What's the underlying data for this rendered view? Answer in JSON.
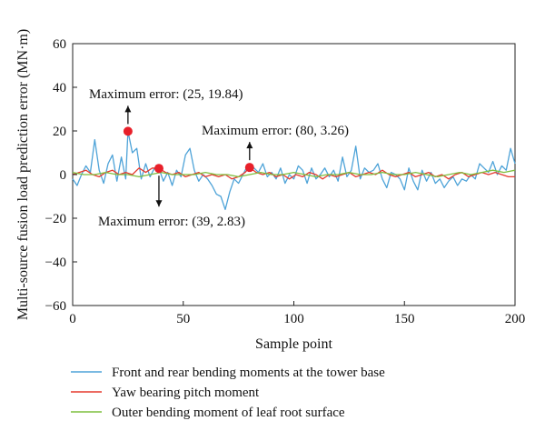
{
  "chart_data": {
    "type": "line",
    "title": "",
    "xlabel": "Sample point",
    "ylabel": "Multi-source fusion load prediction error (MN·m)",
    "xlim": [
      0,
      200
    ],
    "ylim": [
      -60,
      60
    ],
    "xticks": [
      0,
      50,
      100,
      150,
      200
    ],
    "yticks": [
      -60,
      -40,
      -20,
      0,
      20,
      40,
      60
    ],
    "grid": false,
    "legend": "bottom",
    "series": [
      {
        "name": "Front and rear bending moments at the tower base",
        "color": "#4ea3d8",
        "points": [
          [
            0,
            -2
          ],
          [
            2,
            -5
          ],
          [
            4,
            0
          ],
          [
            6,
            4
          ],
          [
            8,
            1
          ],
          [
            10,
            16
          ],
          [
            12,
            2
          ],
          [
            14,
            -4
          ],
          [
            16,
            5
          ],
          [
            18,
            9
          ],
          [
            20,
            -3
          ],
          [
            22,
            8
          ],
          [
            24,
            -2
          ],
          [
            25,
            19.84
          ],
          [
            27,
            10
          ],
          [
            29,
            12
          ],
          [
            31,
            -2
          ],
          [
            33,
            5
          ],
          [
            35,
            -1
          ],
          [
            37,
            3
          ],
          [
            39,
            2.83
          ],
          [
            41,
            -3
          ],
          [
            43,
            1
          ],
          [
            45,
            -5
          ],
          [
            47,
            2
          ],
          [
            49,
            -1
          ],
          [
            51,
            9
          ],
          [
            53,
            12
          ],
          [
            55,
            2
          ],
          [
            57,
            -3
          ],
          [
            59,
            0
          ],
          [
            61,
            -2
          ],
          [
            63,
            -5
          ],
          [
            65,
            -9
          ],
          [
            67,
            -10
          ],
          [
            69,
            -16
          ],
          [
            71,
            -8
          ],
          [
            73,
            -2
          ],
          [
            75,
            -4
          ],
          [
            77,
            0
          ],
          [
            79,
            4
          ],
          [
            80,
            3.26
          ],
          [
            82,
            3
          ],
          [
            84,
            1
          ],
          [
            86,
            5
          ],
          [
            88,
            -1
          ],
          [
            90,
            1
          ],
          [
            92,
            -2
          ],
          [
            94,
            3
          ],
          [
            96,
            -4
          ],
          [
            98,
            0
          ],
          [
            100,
            -2
          ],
          [
            102,
            4
          ],
          [
            104,
            2
          ],
          [
            106,
            -4
          ],
          [
            108,
            3
          ],
          [
            110,
            -2
          ],
          [
            112,
            0
          ],
          [
            114,
            3
          ],
          [
            116,
            -1
          ],
          [
            118,
            2
          ],
          [
            120,
            -3
          ],
          [
            122,
            8
          ],
          [
            124,
            -1
          ],
          [
            126,
            2
          ],
          [
            128,
            13
          ],
          [
            130,
            -2
          ],
          [
            132,
            3
          ],
          [
            134,
            1
          ],
          [
            136,
            2
          ],
          [
            138,
            5
          ],
          [
            140,
            -2
          ],
          [
            142,
            -6
          ],
          [
            144,
            1
          ],
          [
            146,
            0
          ],
          [
            148,
            -2
          ],
          [
            150,
            -7
          ],
          [
            152,
            3
          ],
          [
            154,
            -3
          ],
          [
            156,
            -7
          ],
          [
            158,
            2
          ],
          [
            160,
            -3
          ],
          [
            162,
            1
          ],
          [
            164,
            -4
          ],
          [
            166,
            -2
          ],
          [
            168,
            -6
          ],
          [
            170,
            -3
          ],
          [
            172,
            -1
          ],
          [
            174,
            -5
          ],
          [
            176,
            -2
          ],
          [
            178,
            -3
          ],
          [
            180,
            0
          ],
          [
            182,
            -2
          ],
          [
            184,
            5
          ],
          [
            186,
            3
          ],
          [
            188,
            1
          ],
          [
            190,
            6
          ],
          [
            192,
            0
          ],
          [
            194,
            4
          ],
          [
            196,
            2
          ],
          [
            198,
            12
          ],
          [
            200,
            5
          ]
        ]
      },
      {
        "name": "Yaw bearing pitch moment",
        "color": "#e53a2f",
        "points": [
          [
            0,
            0
          ],
          [
            3,
            1
          ],
          [
            6,
            2
          ],
          [
            9,
            0
          ],
          [
            12,
            -1
          ],
          [
            15,
            1
          ],
          [
            18,
            2
          ],
          [
            21,
            0
          ],
          [
            24,
            1
          ],
          [
            27,
            0
          ],
          [
            30,
            3
          ],
          [
            33,
            1
          ],
          [
            36,
            3
          ],
          [
            39,
            2.83
          ],
          [
            42,
            1
          ],
          [
            45,
            0
          ],
          [
            48,
            1
          ],
          [
            51,
            -1
          ],
          [
            54,
            0
          ],
          [
            57,
            1
          ],
          [
            60,
            -1
          ],
          [
            63,
            0
          ],
          [
            66,
            -1
          ],
          [
            69,
            0
          ],
          [
            72,
            -2
          ],
          [
            75,
            -1
          ],
          [
            78,
            1
          ],
          [
            80,
            3.26
          ],
          [
            83,
            1
          ],
          [
            86,
            0
          ],
          [
            89,
            1
          ],
          [
            92,
            -1
          ],
          [
            95,
            0
          ],
          [
            98,
            -2
          ],
          [
            101,
            0
          ],
          [
            104,
            -1
          ],
          [
            107,
            1
          ],
          [
            110,
            0
          ],
          [
            113,
            -2
          ],
          [
            116,
            0
          ],
          [
            119,
            -1
          ],
          [
            122,
            0
          ],
          [
            125,
            1
          ],
          [
            128,
            -1
          ],
          [
            131,
            0
          ],
          [
            134,
            1
          ],
          [
            137,
            0
          ],
          [
            140,
            2
          ],
          [
            143,
            0
          ],
          [
            146,
            -1
          ],
          [
            149,
            0
          ],
          [
            152,
            1
          ],
          [
            155,
            -1
          ],
          [
            158,
            0
          ],
          [
            161,
            1
          ],
          [
            164,
            -1
          ],
          [
            167,
            0
          ],
          [
            170,
            -2
          ],
          [
            173,
            0
          ],
          [
            176,
            1
          ],
          [
            179,
            -1
          ],
          [
            182,
            0
          ],
          [
            185,
            1
          ],
          [
            188,
            0
          ],
          [
            191,
            1
          ],
          [
            194,
            0
          ],
          [
            197,
            -1
          ],
          [
            200,
            -1
          ]
        ]
      },
      {
        "name": "Outer bending moment of leaf root surface",
        "color": "#7fbf3f",
        "points": [
          [
            0,
            1
          ],
          [
            5,
            0
          ],
          [
            10,
            0
          ],
          [
            15,
            1
          ],
          [
            20,
            0
          ],
          [
            25,
            0
          ],
          [
            30,
            -1
          ],
          [
            35,
            0
          ],
          [
            40,
            1
          ],
          [
            45,
            0
          ],
          [
            50,
            0
          ],
          [
            55,
            0
          ],
          [
            60,
            1
          ],
          [
            65,
            0
          ],
          [
            70,
            0
          ],
          [
            75,
            -1
          ],
          [
            80,
            0
          ],
          [
            85,
            1
          ],
          [
            90,
            0
          ],
          [
            95,
            0
          ],
          [
            100,
            1
          ],
          [
            105,
            0
          ],
          [
            110,
            -1
          ],
          [
            115,
            0
          ],
          [
            120,
            0
          ],
          [
            125,
            1
          ],
          [
            130,
            0
          ],
          [
            135,
            0
          ],
          [
            140,
            1
          ],
          [
            145,
            0
          ],
          [
            150,
            0
          ],
          [
            155,
            1
          ],
          [
            160,
            0
          ],
          [
            165,
            -1
          ],
          [
            170,
            0
          ],
          [
            175,
            1
          ],
          [
            180,
            0
          ],
          [
            185,
            1
          ],
          [
            190,
            2
          ],
          [
            195,
            1
          ],
          [
            200,
            2
          ]
        ]
      }
    ],
    "annotations": [
      {
        "text": "Maximum error: (25, 19.84)",
        "x": 25,
        "y": 19.84,
        "arrow": "up"
      },
      {
        "text": "Maximum error: (39, 2.83)",
        "x": 39,
        "y": 2.83,
        "arrow": "down"
      },
      {
        "text": "Maximum error: (80, 3.26)",
        "x": 80,
        "y": 3.26,
        "arrow": "up"
      }
    ],
    "marker_color": "#e8202a"
  }
}
